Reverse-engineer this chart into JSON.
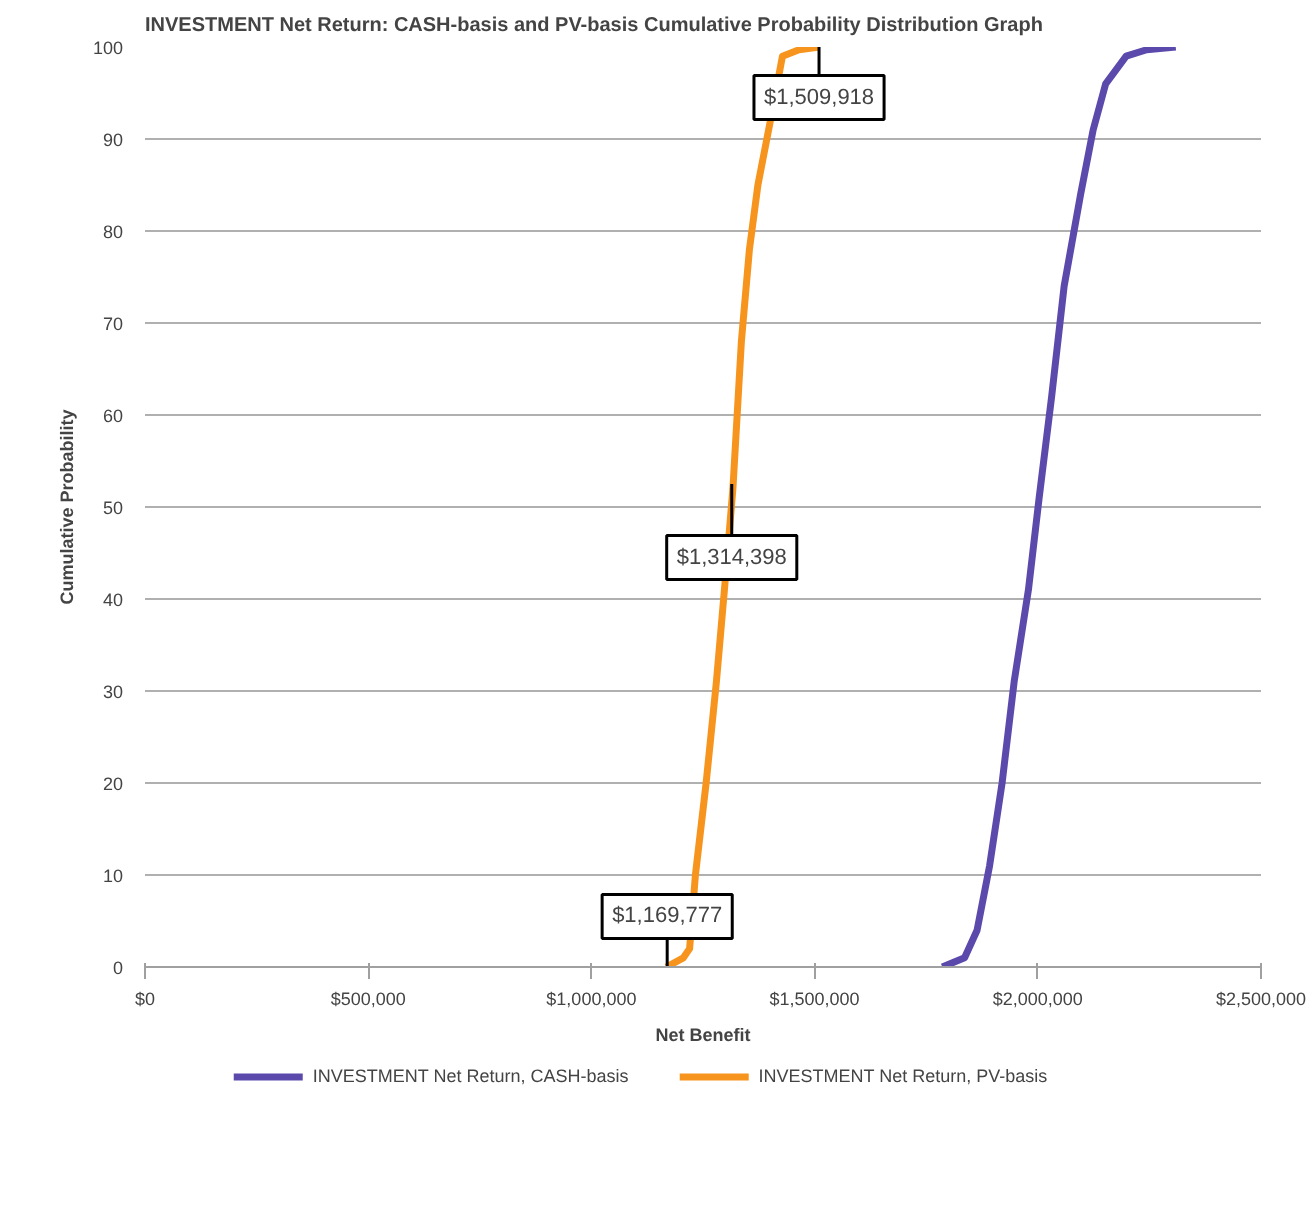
{
  "chart_data": {
    "type": "line",
    "title": "INVESTMENT Net Return: CASH-basis and PV-basis Cumulative Probability Distribution Graph",
    "xlabel": "Net Benefit",
    "ylabel": "Cumulative Probability",
    "xlim": [
      0,
      2500000
    ],
    "xticks": [
      {
        "value": 0,
        "label": "$0"
      },
      {
        "value": 500000,
        "label": "$500,000"
      },
      {
        "value": 1000000,
        "label": "$1,000,000"
      },
      {
        "value": 1500000,
        "label": "$1,500,000"
      },
      {
        "value": 2000000,
        "label": "$2,000,000"
      },
      {
        "value": 2500000,
        "label": "$2,500,000"
      }
    ],
    "ylim": [
      0,
      100
    ],
    "yticks": [
      0,
      10,
      20,
      30,
      40,
      50,
      60,
      70,
      80,
      90,
      100
    ],
    "grid": "y",
    "legend": "bottom",
    "marker": "none",
    "line_style": "solid",
    "series": [
      {
        "name": "INVESTMENT Net Return, CASH-basis",
        "color": "#5b4aab",
        "x": [
          1786000,
          1836000,
          1864000,
          1892000,
          1920000,
          1947000,
          1979000,
          2003000,
          2031000,
          2059000,
          2096000,
          2124000,
          2152000,
          2198000,
          2244000,
          2309000
        ],
        "values": [
          0,
          1,
          4,
          11,
          20,
          31,
          41,
          51,
          62,
          74,
          84,
          91,
          96,
          99,
          99.7,
          100
        ]
      },
      {
        "name": "INVESTMENT Net Return, PV-basis",
        "color": "#f7941d",
        "x": [
          1168000,
          1206000,
          1220000,
          1233000,
          1257000,
          1280000,
          1298000,
          1317000,
          1336000,
          1354000,
          1373000,
          1401000,
          1428000,
          1465000,
          1511000
        ],
        "values": [
          0,
          1,
          2,
          10,
          20,
          31,
          41,
          52,
          68,
          78,
          85,
          92,
          99,
          99.7,
          100
        ]
      }
    ],
    "annotations": [
      {
        "text": "$1,169,777",
        "x": 1169777,
        "y": 0
      },
      {
        "text": "$1,314,398",
        "x": 1314398,
        "y": 50
      },
      {
        "text": "$1,509,918",
        "x": 1509918,
        "y": 100
      }
    ]
  }
}
